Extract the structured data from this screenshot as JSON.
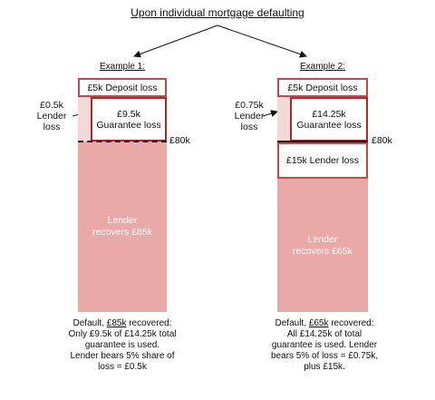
{
  "title": "Upon individual mortgage defaulting",
  "colors": {
    "recover_fill": "#e9a9a7",
    "box_border": "#c44a4a",
    "box_border_dark": "#a82a2a",
    "gap_fill": "#f4d9d8"
  },
  "example1": {
    "label": "Example 1:",
    "deposit_loss": "£5k Deposit loss",
    "guarantee_amount": "£9.5k",
    "guarantee_label": "Guarantee loss",
    "lender_loss_amount": "£0.5k",
    "lender_loss_l1": "Lender",
    "lender_loss_l2": "loss",
    "threshold": "£80k",
    "recover_l1": "Lender",
    "recover_l2": "recovers £85k",
    "cap_pre": "Default, ",
    "cap_amount": "£85k",
    "cap_post": " recovered:",
    "cap_l2": "Only £9.5k of £14.25k total",
    "cap_l3": "guarantee is used.",
    "cap_l4": "Lender bears 5% share of",
    "cap_l5": "loss = £0.5k"
  },
  "example2": {
    "label": "Example 2:",
    "deposit_loss": "£5k Deposit loss",
    "guarantee_amount": "£14.25k",
    "guarantee_label": "Guarantee loss",
    "lender_loss_amount": "£0.75k",
    "lender_loss_l1": "Lender",
    "lender_loss_l2": "loss",
    "threshold": "£80k",
    "lender_loss_box": "£15k Lender loss",
    "recover_l1": "Lender",
    "recover_l2": "recovers £65k",
    "cap_pre": "Default, ",
    "cap_amount": "£65k",
    "cap_post": " recovered:",
    "cap_l2": "All £14.25k of total",
    "cap_l3": "guarantee is used. Lender",
    "cap_l4": "bears 5% of loss = £0.75k,",
    "cap_l5": "plus £15k."
  }
}
